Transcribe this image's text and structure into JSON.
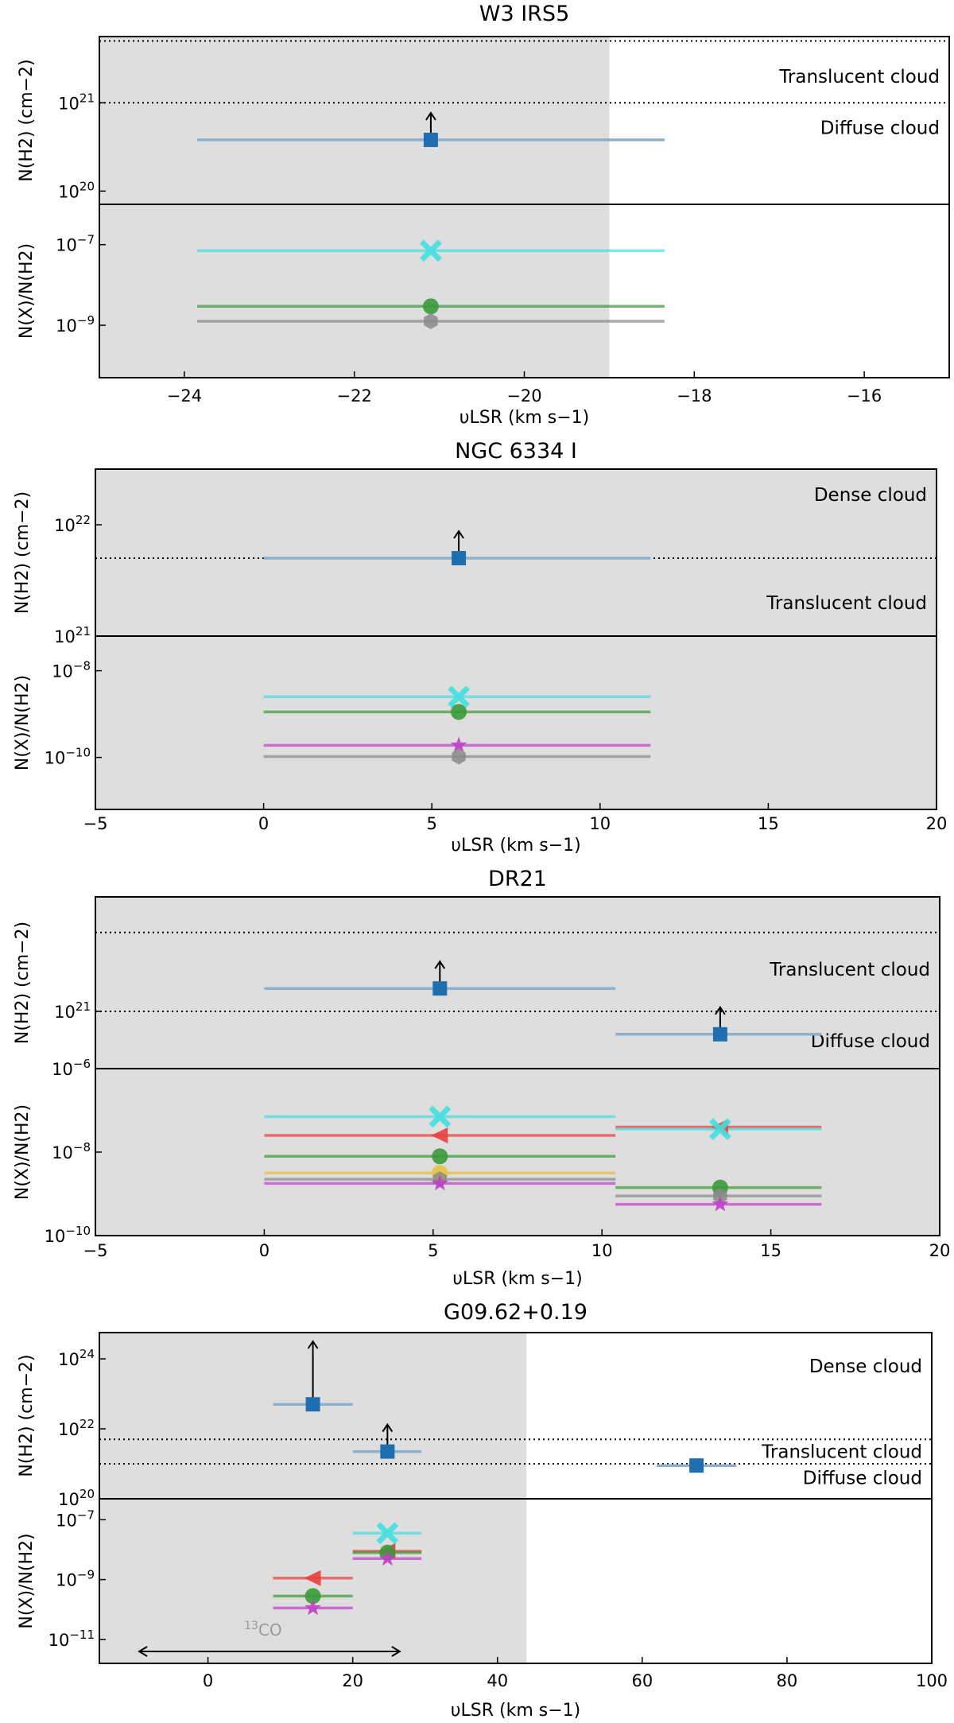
{
  "colors": {
    "shade": "#dedede",
    "h2": "#1f6fb0",
    "h2_bar": "#8fb0cc",
    "arrow": "#000000",
    "x_cross": "#45e0e0",
    "circle": "#3a9a3a",
    "hexagon": "#8a8a8a",
    "star": "#c040c8",
    "triangle": "#e84040",
    "yellow": "#e8c040",
    "co13": "#999999"
  },
  "chart_data": [
    {
      "type": "scatter",
      "title": "W3 IRS5",
      "xlabel": "υLSR (km s−1)",
      "xlim": [
        -25,
        -15
      ],
      "xticks": [
        -24,
        -22,
        -20,
        -18,
        -16
      ],
      "xtick_labels": [
        "−24",
        "−22",
        "−20",
        "−18",
        "−16"
      ],
      "shade_range": [
        -25,
        -19
      ],
      "top": {
        "ylabel": "N(H2) (cm−2)",
        "ylog": [
          19.85,
          21.75
        ],
        "yticks": [
          {
            "exp": 20,
            "label": "10",
            "sup": "20"
          },
          {
            "exp": 21,
            "label": "10",
            "sup": "21"
          }
        ],
        "thresholds": [
          21,
          21.7
        ],
        "regions": [
          {
            "text": "Translucent cloud",
            "y": 21.3
          },
          {
            "text": "Diffuse cloud",
            "y": 20.72
          }
        ],
        "points": [
          {
            "v": -21.1,
            "vmin": -23.85,
            "vmax": -18.35,
            "logN": 20.58,
            "lower_limit": true
          }
        ]
      },
      "bottom": {
        "ylabel": "N(X)/N(H2)",
        "ylog": [
          -10.3,
          -6.0
        ],
        "yticks": [
          {
            "exp": -7,
            "label": "10",
            "sup": "−7"
          },
          {
            "exp": -9,
            "label": "10",
            "sup": "−9"
          }
        ],
        "points": [
          {
            "species": "x_cross",
            "v": -21.1,
            "vmin": -23.85,
            "vmax": -18.35,
            "log": -7.15
          },
          {
            "species": "circle",
            "v": -21.1,
            "vmin": -23.85,
            "vmax": -18.35,
            "log": -8.53
          },
          {
            "species": "hexagon",
            "v": -21.1,
            "vmin": -23.85,
            "vmax": -18.35,
            "log": -8.9
          }
        ]
      }
    },
    {
      "type": "scatter",
      "title": "NGC 6334 I",
      "xlabel": "υLSR (km s−1)",
      "xlim": [
        -5,
        20
      ],
      "xticks": [
        -5,
        0,
        5,
        10,
        15,
        20
      ],
      "xtick_labels": [
        "−5",
        "0",
        "5",
        "10",
        "15",
        "20"
      ],
      "shade_range": [
        -5,
        20
      ],
      "top": {
        "ylabel": "N(H2) (cm−2)",
        "ylog": [
          21.0,
          22.5
        ],
        "yticks": [
          {
            "exp": 22,
            "label": "10",
            "sup": "22"
          },
          {
            "exp": 21,
            "label": "10",
            "sup": "21"
          }
        ],
        "thresholds": [
          21.7
        ],
        "regions": [
          {
            "text": "Dense cloud",
            "y": 22.27
          },
          {
            "text": "Translucent cloud",
            "y": 21.3
          }
        ],
        "points": [
          {
            "v": 5.8,
            "vmin": 0.0,
            "vmax": 11.5,
            "logN": 21.7,
            "lower_limit": true
          }
        ]
      },
      "bottom": {
        "ylabel": "N(X)/N(H2)",
        "ylog": [
          -11.2,
          -7.2
        ],
        "yticks": [
          {
            "exp": -8,
            "label": "10",
            "sup": "−8"
          },
          {
            "exp": -10,
            "label": "10",
            "sup": "−10"
          }
        ],
        "points": [
          {
            "species": "x_cross",
            "v": 5.8,
            "vmin": 0.0,
            "vmax": 11.5,
            "log": -8.6
          },
          {
            "species": "circle",
            "v": 5.8,
            "vmin": 0.0,
            "vmax": 11.5,
            "log": -8.95
          },
          {
            "species": "star",
            "v": 5.8,
            "vmin": 0.0,
            "vmax": 11.5,
            "log": -9.72
          },
          {
            "species": "hexagon",
            "v": 5.8,
            "vmin": 0.0,
            "vmax": 11.5,
            "log": -9.98
          }
        ]
      }
    },
    {
      "type": "scatter",
      "title": "DR21",
      "xlabel": "υLSR (km s−1)",
      "xlim": [
        -5,
        20
      ],
      "xticks": [
        -5,
        0,
        5,
        10,
        15,
        20
      ],
      "xtick_labels": [
        "−5",
        "0",
        "5",
        "10",
        "15",
        "20"
      ],
      "shade_range": [
        -5,
        20
      ],
      "top": {
        "ylabel": "N(H2) (cm−2)",
        "ylog": [
          20.55,
          21.9
        ],
        "yticks": [
          {
            "exp": 21,
            "label": "10",
            "sup": "21"
          }
        ],
        "thresholds": [
          21.0,
          21.62
        ],
        "regions": [
          {
            "text": "Translucent cloud",
            "y": 21.33
          },
          {
            "text": "Diffuse cloud",
            "y": 20.77
          }
        ],
        "points": [
          {
            "v": 5.2,
            "vmin": 0.0,
            "vmax": 10.4,
            "logN": 21.18,
            "lower_limit": true
          },
          {
            "v": 13.5,
            "vmin": 10.4,
            "vmax": 16.5,
            "logN": 20.82,
            "lower_limit": true
          }
        ]
      },
      "bottom": {
        "ylabel": "N(X)/N(H2)",
        "ylog": [
          -10.0,
          -6.0
        ],
        "yticks": [
          {
            "exp": -6,
            "label": "10",
            "sup": "−6"
          },
          {
            "exp": -8,
            "label": "10",
            "sup": "−8"
          },
          {
            "exp": -10,
            "label": "10",
            "sup": "−10"
          }
        ],
        "points": [
          {
            "species": "x_cross",
            "v": 5.2,
            "vmin": 0.0,
            "vmax": 10.4,
            "log": -7.15
          },
          {
            "species": "triangle",
            "v": 5.2,
            "vmin": 0.0,
            "vmax": 10.4,
            "log": -7.6
          },
          {
            "species": "circle",
            "v": 5.2,
            "vmin": 0.0,
            "vmax": 10.4,
            "log": -8.1
          },
          {
            "species": "yellow",
            "v": 5.2,
            "vmin": 0.0,
            "vmax": 10.4,
            "log": -8.5
          },
          {
            "species": "hexagon",
            "v": 5.2,
            "vmin": 0.0,
            "vmax": 10.4,
            "log": -8.65
          },
          {
            "species": "star",
            "v": 5.2,
            "vmin": 0.0,
            "vmax": 10.4,
            "log": -8.75
          },
          {
            "species": "triangle",
            "v": 13.5,
            "vmin": 10.4,
            "vmax": 16.5,
            "log": -7.4
          },
          {
            "species": "x_cross",
            "v": 13.5,
            "vmin": 10.4,
            "vmax": 16.5,
            "log": -7.45
          },
          {
            "species": "circle",
            "v": 13.5,
            "vmin": 10.4,
            "vmax": 16.5,
            "log": -8.85
          },
          {
            "species": "hexagon",
            "v": 13.5,
            "vmin": 10.4,
            "vmax": 16.5,
            "log": -9.05
          },
          {
            "species": "star",
            "v": 13.5,
            "vmin": 10.4,
            "vmax": 16.5,
            "log": -9.25
          }
        ]
      }
    },
    {
      "type": "scatter",
      "title": "G09.62+0.19",
      "xlabel": "υLSR (km s−1)",
      "xlim": [
        -15,
        100
      ],
      "xticks": [
        0,
        20,
        40,
        60,
        80,
        100
      ],
      "xtick_labels": [
        "0",
        "20",
        "40",
        "60",
        "80",
        "100"
      ],
      "shade_range": [
        -15,
        44
      ],
      "top": {
        "ylabel": "N(H2) (cm−2)",
        "ylog": [
          20.0,
          24.75
        ],
        "yticks": [
          {
            "exp": 24,
            "label": "10",
            "sup": "24"
          },
          {
            "exp": 22,
            "label": "10",
            "sup": "22"
          },
          {
            "exp": 20,
            "label": "10",
            "sup": "20"
          }
        ],
        "thresholds": [
          21.7,
          21.0
        ],
        "regions": [
          {
            "text": "Dense cloud",
            "y": 23.8
          },
          {
            "text": "Translucent cloud",
            "y": 21.35
          },
          {
            "text": "Diffuse cloud",
            "y": 20.6
          }
        ],
        "points": [
          {
            "v": 14.5,
            "vmin": 9.0,
            "vmax": 20.0,
            "logN": 22.7,
            "lower_limit": true,
            "arrow_top": 24.5
          },
          {
            "v": 24.8,
            "vmin": 20.0,
            "vmax": 29.5,
            "logN": 21.35,
            "lower_limit": true
          },
          {
            "v": 67.5,
            "vmin": 62.0,
            "vmax": 73.0,
            "logN": 20.95,
            "lower_limit": false
          }
        ]
      },
      "bottom": {
        "ylabel": "N(X)/N(H2)",
        "ylog": [
          -11.8,
          -6.3
        ],
        "yticks": [
          {
            "exp": -7,
            "label": "10",
            "sup": "−7"
          },
          {
            "exp": -9,
            "label": "10",
            "sup": "−9"
          },
          {
            "exp": -11,
            "label": "10",
            "sup": "−11"
          }
        ],
        "co13": {
          "label": "13CO",
          "label_sup": "13",
          "label_main": "CO",
          "from": -9.5,
          "to": 26.5
        },
        "points": [
          {
            "species": "triangle",
            "v": 14.5,
            "vmin": 9.0,
            "vmax": 20.0,
            "log": -8.95
          },
          {
            "species": "circle",
            "v": 14.5,
            "vmin": 9.0,
            "vmax": 20.0,
            "log": -9.55
          },
          {
            "species": "star",
            "v": 14.5,
            "vmin": 9.0,
            "vmax": 20.0,
            "log": -9.95
          },
          {
            "species": "x_cross",
            "v": 24.8,
            "vmin": 20.0,
            "vmax": 29.5,
            "log": -7.45
          },
          {
            "species": "triangle",
            "v": 24.8,
            "vmin": 20.0,
            "vmax": 29.5,
            "log": -8.05
          },
          {
            "species": "circle",
            "v": 24.8,
            "vmin": 20.0,
            "vmax": 29.5,
            "log": -8.1
          },
          {
            "species": "star",
            "v": 24.8,
            "vmin": 20.0,
            "vmax": 29.5,
            "log": -8.3
          }
        ]
      }
    }
  ]
}
